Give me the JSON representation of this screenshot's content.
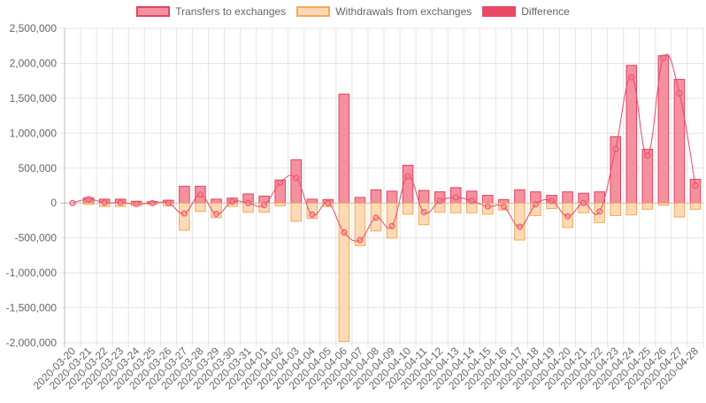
{
  "chart_data": {
    "type": "bar",
    "categories": [
      "2020-03-20",
      "2020-03-21",
      "2020-03-22",
      "2020-03-23",
      "2020-03-24",
      "2020-03-25",
      "2020-03-26",
      "2020-03-27",
      "2020-03-28",
      "2020-03-29",
      "2020-03-30",
      "2020-03-31",
      "2020-04-01",
      "2020-04-02",
      "2020-04-03",
      "2020-04-04",
      "2020-04-05",
      "2020-04-06",
      "2020-04-07",
      "2020-04-08",
      "2020-04-09",
      "2020-04-10",
      "2020-04-11",
      "2020-04-12",
      "2020-04-13",
      "2020-04-14",
      "2020-04-15",
      "2020-04-16",
      "2020-04-17",
      "2020-04-18",
      "2020-04-19",
      "2020-04-20",
      "2020-04-21",
      "2020-04-22",
      "2020-04-23",
      "2020-04-24",
      "2020-04-25",
      "2020-04-26",
      "2020-04-27",
      "2020-04-28"
    ],
    "series": [
      {
        "name": "Transfers to exchanges",
        "type": "bar",
        "values": [
          0,
          75000,
          55000,
          55000,
          25000,
          20000,
          40000,
          240000,
          240000,
          55000,
          70000,
          130000,
          100000,
          330000,
          620000,
          55000,
          50000,
          1560000,
          80000,
          190000,
          170000,
          540000,
          180000,
          160000,
          220000,
          170000,
          110000,
          50000,
          190000,
          160000,
          110000,
          160000,
          140000,
          160000,
          950000,
          1970000,
          770000,
          2110000,
          1770000,
          340000
        ]
      },
      {
        "name": "Withdrawals from exchanges",
        "type": "bar",
        "values": [
          0,
          -20000,
          -50000,
          -50000,
          -40000,
          -20000,
          -40000,
          -390000,
          -120000,
          -210000,
          -50000,
          -130000,
          -130000,
          -40000,
          -260000,
          -220000,
          -50000,
          -1980000,
          -610000,
          -400000,
          -500000,
          -160000,
          -310000,
          -130000,
          -140000,
          -140000,
          -160000,
          -100000,
          -530000,
          -180000,
          -80000,
          -350000,
          -140000,
          -280000,
          -180000,
          -170000,
          -90000,
          -30000,
          -200000,
          -90000
        ]
      },
      {
        "name": "Difference",
        "type": "line",
        "values": [
          0,
          55000,
          5000,
          5000,
          -15000,
          0,
          0,
          -150000,
          120000,
          -155000,
          20000,
          0,
          -30000,
          290000,
          360000,
          -165000,
          0,
          -420000,
          -530000,
          -210000,
          -330000,
          380000,
          -130000,
          30000,
          80000,
          30000,
          -50000,
          -50000,
          -340000,
          -20000,
          30000,
          -190000,
          0,
          -120000,
          770000,
          1800000,
          680000,
          2080000,
          1570000,
          250000
        ]
      }
    ],
    "colors": {
      "transfers_fill": "#f5909f",
      "transfers_border": "#e0445f",
      "withdrawals_fill": "#fed9b5",
      "withdrawals_border": "#f4a85b",
      "difference_line": "#ea4a66"
    },
    "ylim": [
      -2000000,
      2500000
    ],
    "yticks": [
      "2,500,000",
      "2,000,000",
      "1,500,000",
      "1,000,000",
      "500,000",
      "0",
      "-500,000",
      "-1,000,000",
      "-1,500,000",
      "-2,000,000"
    ],
    "ytick_values": [
      2500000,
      2000000,
      1500000,
      1000000,
      500000,
      0,
      -500000,
      -1000000,
      -1500000,
      -2000000
    ],
    "legend_position": "top",
    "grid": true,
    "title": "",
    "xlabel": "",
    "ylabel": ""
  }
}
